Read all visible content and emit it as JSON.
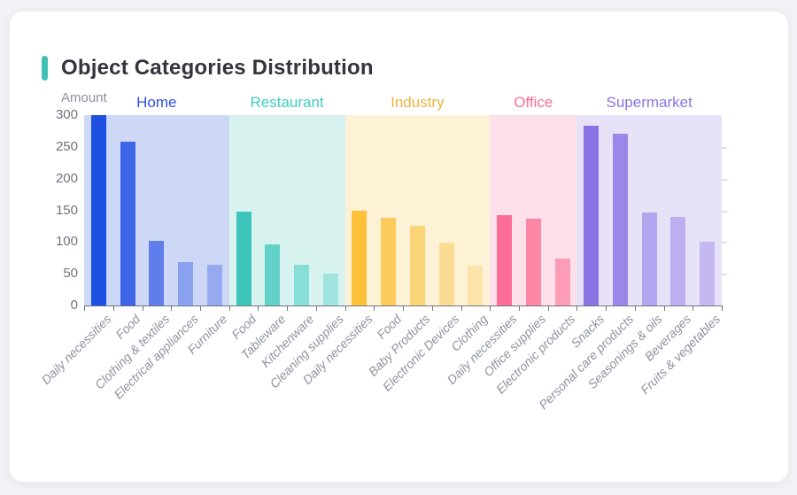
{
  "page": {
    "background_color": "#f0f2f5",
    "card_color": "#ffffff"
  },
  "header": {
    "title": "Object Categories Distribution",
    "accent_color": "#41c0b5"
  },
  "chart_data": {
    "type": "bar",
    "title": "Object Categories Distribution",
    "xlabel": "",
    "ylabel": "Amount",
    "ylim": [
      0,
      300
    ],
    "yticks": [
      0,
      50,
      100,
      150,
      200,
      250,
      300
    ],
    "grid": false,
    "legend_position": "group-headers-top",
    "axis_color": "#71757f",
    "x_tick_label_color": "#8f93a0",
    "y_tick_label_color": "#6f727e",
    "groups": [
      {
        "name": "Home",
        "label_color": "#2d50e6",
        "band_color": "#cdd8f6",
        "bars": [
          {
            "category": "Daily necessities",
            "value": 300,
            "color": "#1d4fe0"
          },
          {
            "category": "Food",
            "value": 258,
            "color": "#3e65e7"
          },
          {
            "category": "Clothing & textiles",
            "value": 102,
            "color": "#5f7eeb"
          },
          {
            "category": "Electrical appliances",
            "value": 68,
            "color": "#8aa1f0"
          },
          {
            "category": "Furniture",
            "value": 64,
            "color": "#97aaf1"
          }
        ]
      },
      {
        "name": "Restaurant",
        "label_color": "#41ccc1",
        "band_color": "#d8f2ef",
        "bars": [
          {
            "category": "Food",
            "value": 148,
            "color": "#3ec6bc"
          },
          {
            "category": "Tableware",
            "value": 97,
            "color": "#62d2c9"
          },
          {
            "category": "Kitchenware",
            "value": 64,
            "color": "#86ded7"
          },
          {
            "category": "Cleaning supplies",
            "value": 50,
            "color": "#9fe4de"
          }
        ]
      },
      {
        "name": "Industry",
        "label_color": "#ecb440",
        "band_color": "#fdf2d6",
        "bars": [
          {
            "category": "Daily necessities",
            "value": 150,
            "color": "#fdc23a"
          },
          {
            "category": "Food",
            "value": 138,
            "color": "#fccb5c"
          },
          {
            "category": "Baby Products",
            "value": 126,
            "color": "#fcd478"
          },
          {
            "category": "Electronic Devices",
            "value": 99,
            "color": "#fbdc95"
          },
          {
            "category": "Clothing",
            "value": 63,
            "color": "#fbe3a9"
          }
        ]
      },
      {
        "name": "Office",
        "label_color": "#fb6d96",
        "band_color": "#fde0e9",
        "bars": [
          {
            "category": "Daily necessities",
            "value": 142,
            "color": "#fb6d96"
          },
          {
            "category": "Office supplies",
            "value": 137,
            "color": "#fb86a6"
          },
          {
            "category": "Electronic products",
            "value": 74,
            "color": "#fc9cb6"
          }
        ]
      },
      {
        "name": "Supermarket",
        "label_color": "#8b72e3",
        "band_color": "#e7e2f8",
        "bars": [
          {
            "category": "Snacks",
            "value": 284,
            "color": "#8b72e3"
          },
          {
            "category": "Personal care products",
            "value": 271,
            "color": "#9c87e8"
          },
          {
            "category": "Seasonings & oils",
            "value": 147,
            "color": "#b3a4ee"
          },
          {
            "category": "Beverages",
            "value": 140,
            "color": "#bcaef0"
          },
          {
            "category": "Fruits & vegetables",
            "value": 100,
            "color": "#c5b8f2"
          }
        ]
      }
    ]
  }
}
